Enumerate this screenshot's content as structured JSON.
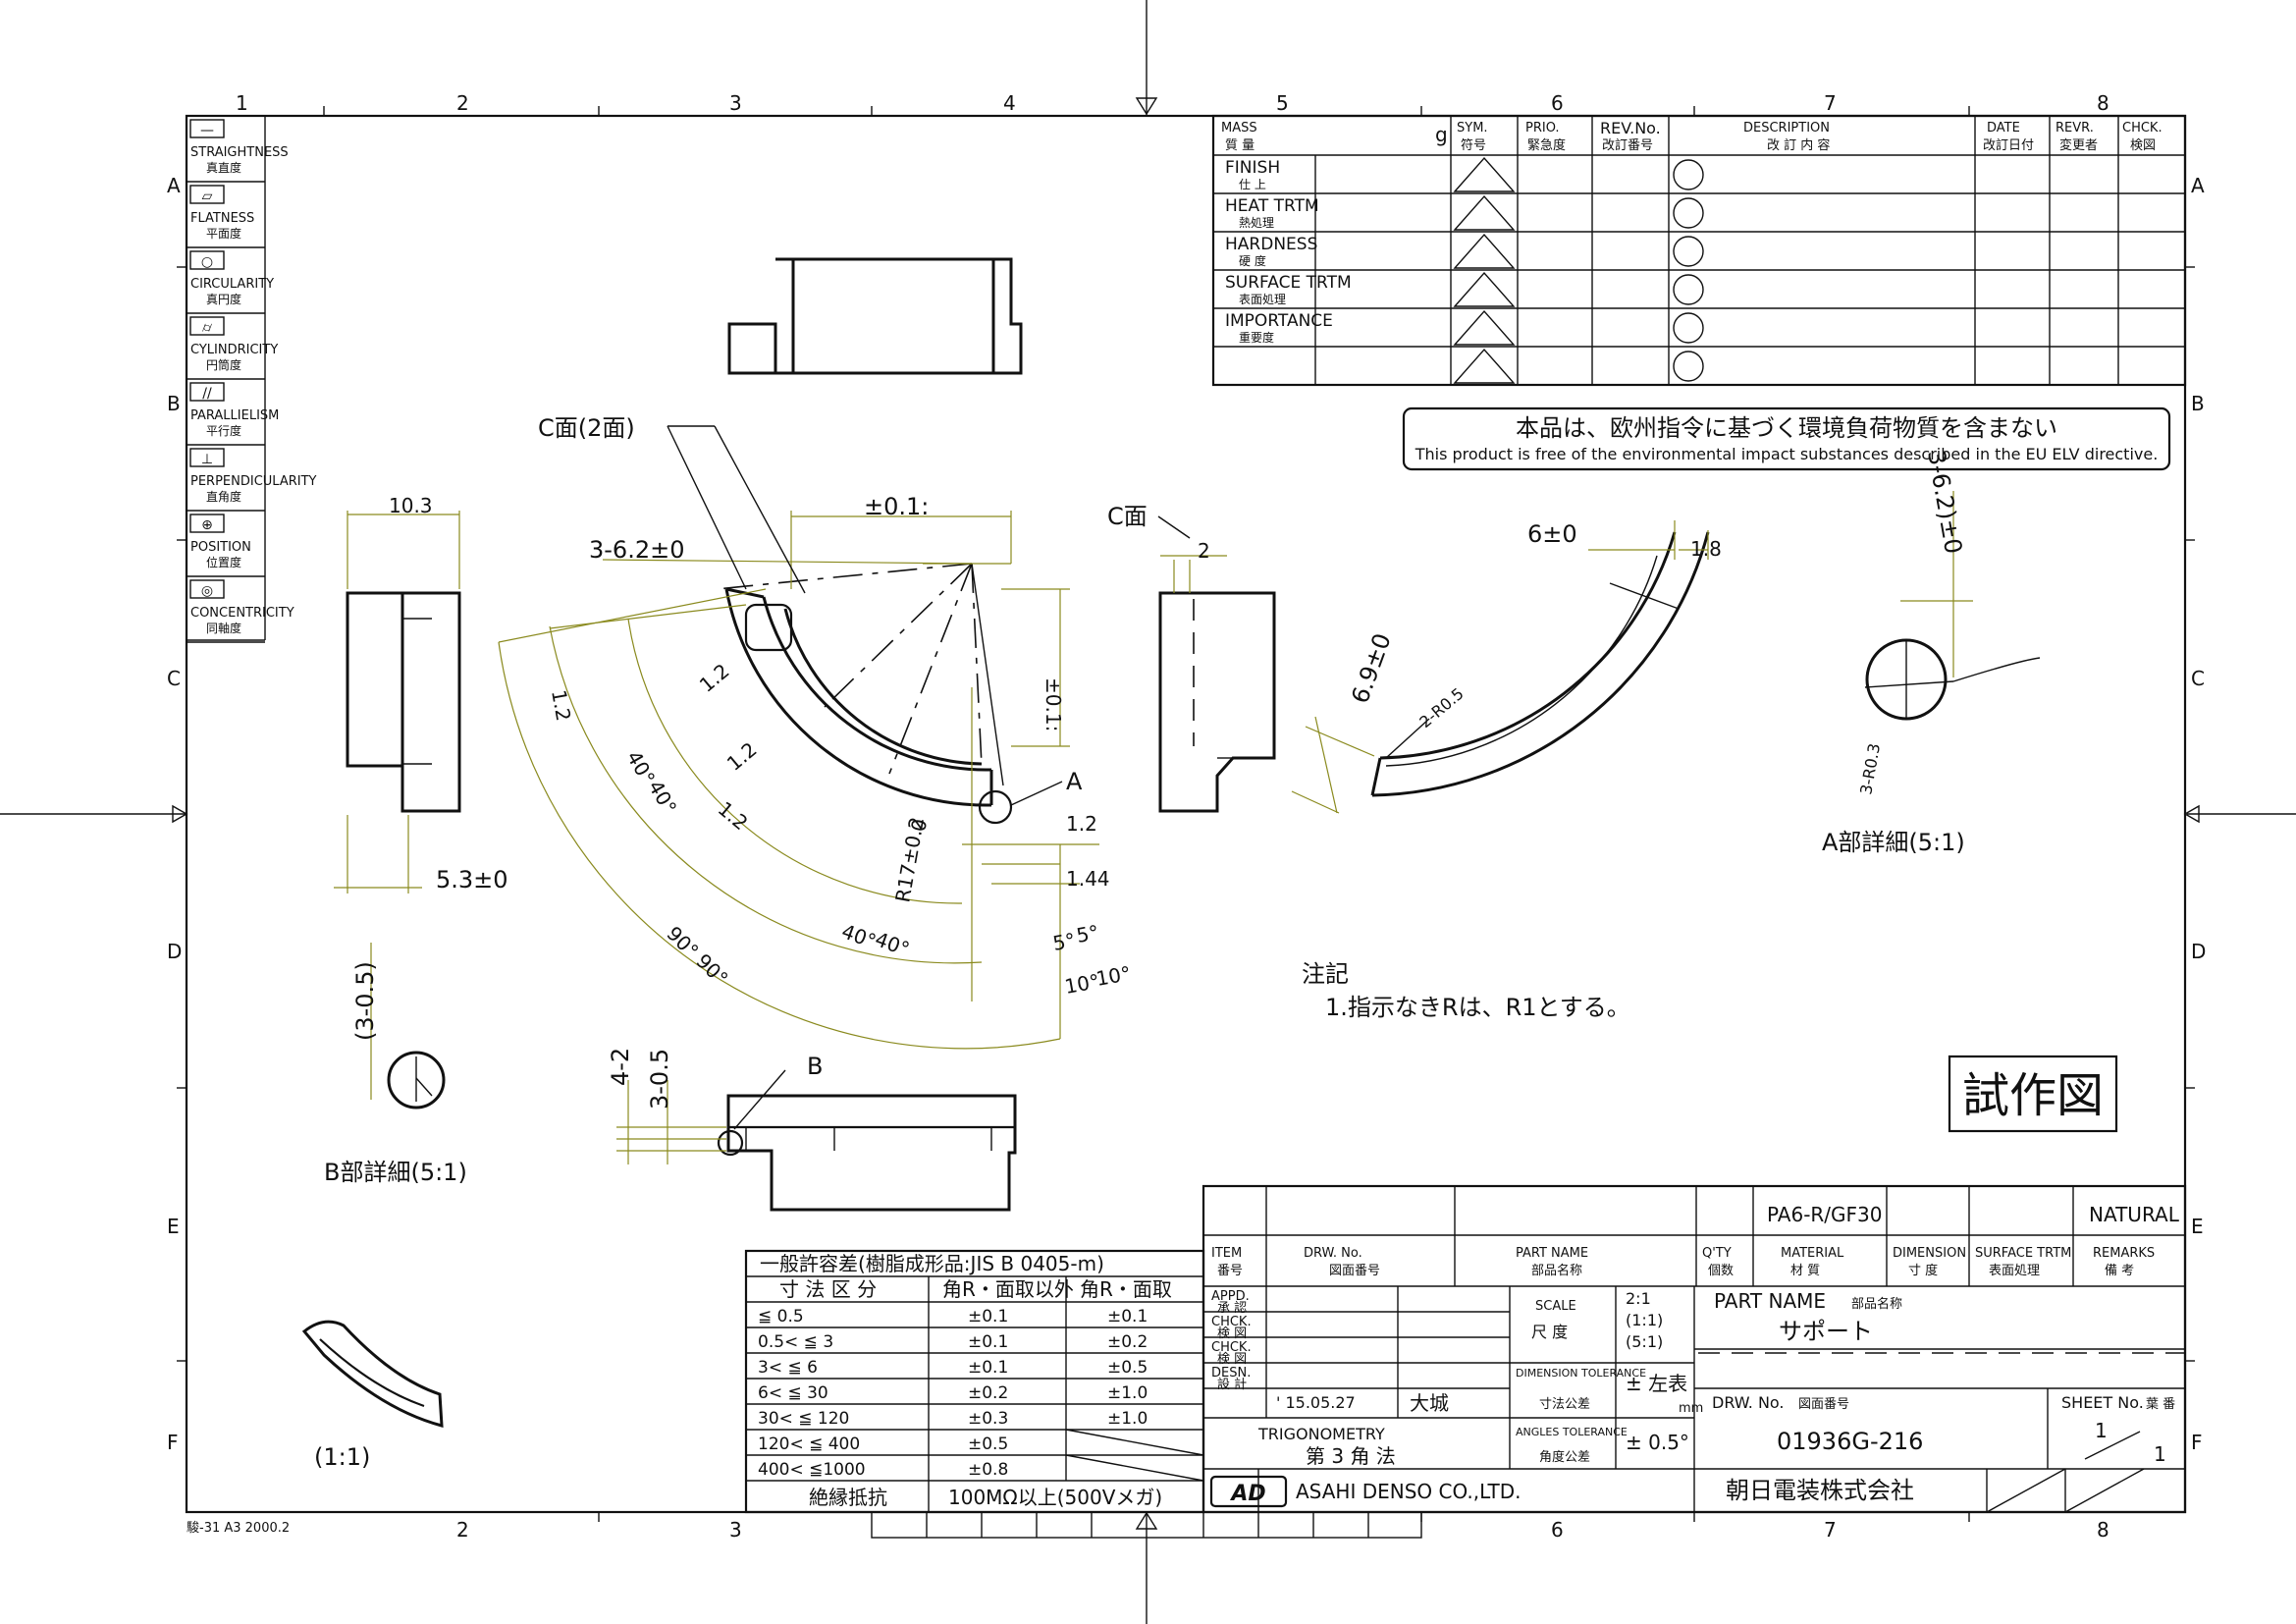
{
  "grid": {
    "top_numbers": [
      "1",
      "2",
      "3",
      "4",
      "5",
      "6",
      "7",
      "8"
    ],
    "bottom_numbers": [
      "2",
      "3",
      "6",
      "7",
      "8"
    ],
    "side_letters": [
      "A",
      "B",
      "C",
      "D",
      "E",
      "F"
    ]
  },
  "form_code": "駿-31 A3 2000.2",
  "symbols": [
    {
      "en": "STRAIGHTNESS",
      "jp": "真直度",
      "icon": "straightness-icon",
      "glyph": "—"
    },
    {
      "en": "FLATNESS",
      "jp": "平面度",
      "icon": "flatness-icon",
      "glyph": "▱"
    },
    {
      "en": "CIRCULARITY",
      "jp": "真円度",
      "icon": "circularity-icon",
      "glyph": "○"
    },
    {
      "en": "CYLINDRICITY",
      "jp": "円筒度",
      "icon": "cylindricity-icon",
      "glyph": "⌭"
    },
    {
      "en": "PARALLIELISM",
      "jp": "平行度",
      "icon": "parallelism-icon",
      "glyph": "//"
    },
    {
      "en": "PERPENDICULARITY",
      "jp": "直角度",
      "icon": "perpendicularity-icon",
      "glyph": "⊥"
    },
    {
      "en": "POSITION",
      "jp": "位置度",
      "icon": "position-icon",
      "glyph": "⊕"
    },
    {
      "en": "CONCENTRICITY",
      "jp": "同軸度",
      "icon": "concentricity-icon",
      "glyph": "◎"
    }
  ],
  "revision": {
    "mass_en": "MASS",
    "mass_jp": "質 量",
    "mass_unit": "g",
    "sym_en": "SYM.",
    "sym_jp": "符号",
    "prio_en": "PRIO.",
    "prio_jp": "緊急度",
    "rev_en": "REV.No.",
    "rev_jp": "改訂番号",
    "desc_en": "DESCRIPTION",
    "desc_jp": "改 訂 内 容",
    "date_en": "DATE",
    "date_jp": "改訂日付",
    "revr_en": "REVR.",
    "revr_jp": "変更者",
    "chck_en": "CHCK.",
    "chck_jp": "検図",
    "rows": [
      {
        "en": "FINISH",
        "jp": "仕 上"
      },
      {
        "en": "HEAT TRTM",
        "jp": "熱処理"
      },
      {
        "en": "HARDNESS",
        "jp": "硬 度"
      },
      {
        "en": "SURFACE TRTM",
        "jp": "表面処理"
      },
      {
        "en": "IMPORTANCE",
        "jp": "重要度"
      },
      {
        "en": "",
        "jp": ""
      }
    ]
  },
  "notice": {
    "jp": "本品は、欧州指令に基づく環境負荷物質を含まない",
    "en": "This product is free of the environmental impact substances described in the EU ELV directive."
  },
  "dims": {
    "c_face_2": "C面(2面)",
    "c_face": "C面",
    "d_10_3": "10.3",
    "d_5_3": "5.3±0",
    "d_3_62": "3-6.2±0",
    "d_pm01_top": "±0.1:",
    "d_pm01_side": "±0.1:",
    "d_12": "1.2",
    "d_40": "40°",
    "d_90": "90°",
    "d_5": "5°",
    "d_10": "10°",
    "d_r17": "R17±0.2",
    "d_0": "0",
    "d_144": "1.44",
    "label_a": "A",
    "d_2": "2",
    "d_6": "6±0",
    "d_18": "1.8",
    "d_69": "6.9±0",
    "d_2r05": "2-R0.5",
    "d_3_62_b": "3-6.2)±0",
    "d_3r03": "3-R0.3",
    "detail_a": "A部詳細(5:1)",
    "d_3_05": "(3-0.5)",
    "detail_b": "B部詳細(5:1)",
    "d_4_2": "4-2",
    "d_3_05b": "3-0.5",
    "label_b": "B",
    "scale_1": "(1:1)"
  },
  "notes": {
    "title": "注記",
    "line1": "1.指示なきRは、R1とする。"
  },
  "stamp": "試作図",
  "tolerance": {
    "title": "一般許容差(樹脂成形品:JIS B 0405-m)",
    "h1": "寸 法 区 分",
    "h2": "角R・面取以外",
    "h3": "角R・面取",
    "rows": [
      [
        "≦ 0.5",
        "±0.1",
        "±0.1"
      ],
      [
        "0.5< ≦ 3",
        "±0.1",
        "±0.2"
      ],
      [
        "3< ≦ 6",
        "±0.1",
        "±0.5"
      ],
      [
        "6< ≦ 30",
        "±0.2",
        "±1.0"
      ],
      [
        "30< ≦ 120",
        "±0.3",
        "±1.0"
      ],
      [
        "120< ≦ 400",
        "±0.5",
        ""
      ],
      [
        "400< ≦1000",
        "±0.8",
        ""
      ]
    ],
    "insul_label": "絶縁抵抗",
    "insul_value": "100MΩ以上(500Vメガ)"
  },
  "title_block": {
    "material_value": "PA6-R/GF30",
    "remarks_value": "NATURAL",
    "item_en": "ITEM",
    "item_jp": "番号",
    "drw_en": "DRW. No.",
    "drw_jp": "図面番号",
    "part_en": "PART NAME",
    "part_jp": "部品名称",
    "qty_en": "Q'TY",
    "qty_jp": "個数",
    "mat_en": "MATERIAL",
    "mat_jp": "材 質",
    "dimh_en": "DIMENSION",
    "dimh_jp": "寸 度",
    "surf_en": "SURFACE TRTM",
    "surf_jp": "表面処理",
    "rem_en": "REMARKS",
    "rem_jp": "備 考",
    "appd_en": "APPD.",
    "appd_jp": "承 認",
    "chck_en": "CHCK.",
    "chck_jp": "検 図",
    "chck2_en": "CHCK.",
    "chck2_jp": "検 図",
    "desn_en": "DESN.",
    "desn_jp": "設 計",
    "desn_date": "' 15.05.27",
    "desn_name": "大城",
    "scale_en": "SCALE",
    "scale_jp": "尺 度",
    "scale_v1": "2:1",
    "scale_v2": "(1:1)",
    "scale_v3": "(5:1)",
    "dimtol_en": "DIMENSION TOLERANCE",
    "dimtol_jp": "寸法公差",
    "dimtol_v": "± 左表",
    "dimtol_unit": "mm",
    "angtol_en": "ANGLES TOLERANCE",
    "angtol_jp": "角度公差",
    "angtol_v": "± 0.5°",
    "trig_en": "TRIGONOMETRY",
    "trig_jp": "第 3 角 法",
    "partname_label_en": "PART NAME",
    "partname_label_jp": "部品名称",
    "partname_value": "サポート",
    "drwno_label_en": "DRW. No.",
    "drwno_label_jp": "図面番号",
    "drwno_value": "01936G-216",
    "sheet_en": "SHEET No.",
    "sheet_jp": "葉 番",
    "sheet_num": "1",
    "sheet_total": "1",
    "company_en": "ASAHI DENSO CO.,LTD.",
    "company_jp": "朝日電装株式会社",
    "logo_text": "AD"
  }
}
